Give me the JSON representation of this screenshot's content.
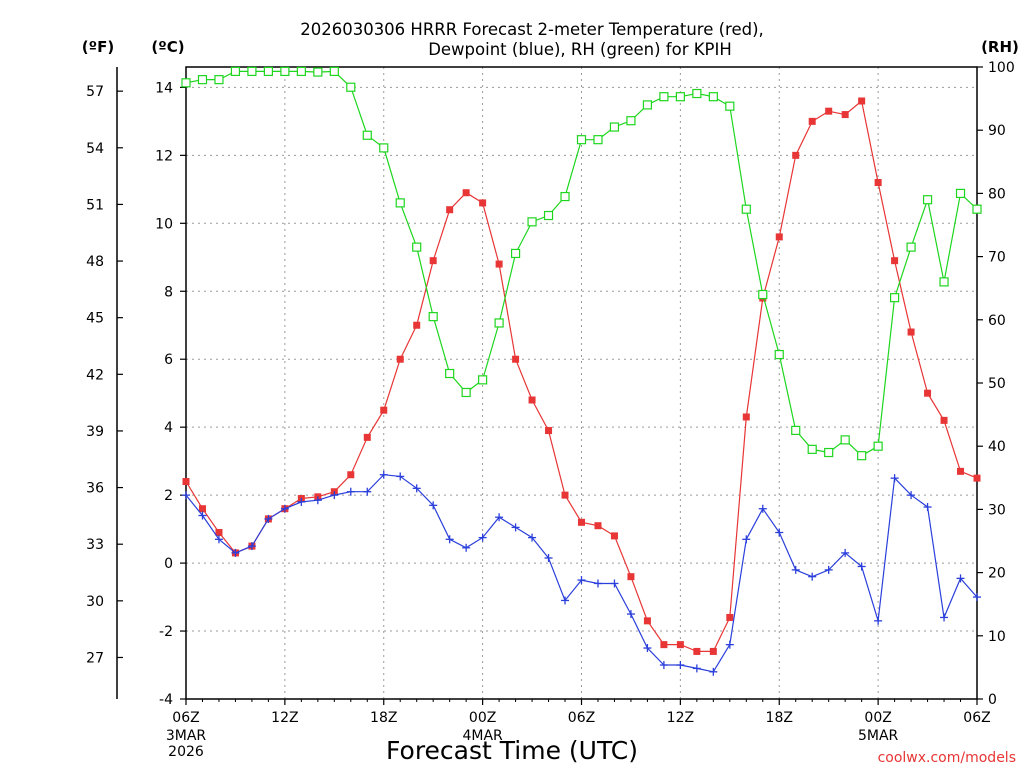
{
  "chart_data": {
    "type": "line",
    "title_line1": "2026030306 HRRR Forecast 2-meter Temperature (red),",
    "title_line2": "Dewpoint (blue), RH (green) for KPIH",
    "xlabel": "Forecast Time (UTC)",
    "left_outer_axis_label": "(ºF)",
    "left_inner_axis_label": "(ºC)",
    "right_axis_label": "(RH)",
    "watermark": "coolwx.com/models",
    "xlim": [
      0,
      48
    ],
    "ylim_c": [
      -4,
      14.6
    ],
    "ylim_rh": [
      0,
      100
    ],
    "x_ticks": [
      {
        "hour": 0,
        "label": "06Z",
        "sub1": "3MAR",
        "sub2": "2026"
      },
      {
        "hour": 6,
        "label": "12Z",
        "sub1": "",
        "sub2": ""
      },
      {
        "hour": 12,
        "label": "18Z",
        "sub1": "",
        "sub2": ""
      },
      {
        "hour": 18,
        "label": "00Z",
        "sub1": "4MAR",
        "sub2": ""
      },
      {
        "hour": 24,
        "label": "06Z",
        "sub1": "",
        "sub2": ""
      },
      {
        "hour": 30,
        "label": "12Z",
        "sub1": "",
        "sub2": ""
      },
      {
        "hour": 36,
        "label": "18Z",
        "sub1": "",
        "sub2": ""
      },
      {
        "hour": 42,
        "label": "00Z",
        "sub1": "5MAR",
        "sub2": ""
      },
      {
        "hour": 48,
        "label": "06Z",
        "sub1": "",
        "sub2": ""
      }
    ],
    "y_ticks_c": [
      "-4",
      "-2",
      "0",
      "2",
      "4",
      "6",
      "8",
      "10",
      "12",
      "14"
    ],
    "y_ticks_f": [
      "27",
      "30",
      "33",
      "36",
      "39",
      "42",
      "45",
      "48",
      "51",
      "54",
      "57"
    ],
    "y_ticks_rh": [
      "0",
      "10",
      "20",
      "30",
      "40",
      "50",
      "60",
      "70",
      "80",
      "90",
      "100"
    ],
    "series": [
      {
        "name": "Temperature",
        "color": "#e83535",
        "axis": "celsius",
        "marker": "filled-square",
        "values": [
          2.4,
          1.6,
          0.9,
          0.3,
          0.5,
          1.3,
          1.6,
          1.9,
          1.95,
          2.1,
          2.6,
          3.7,
          4.5,
          6.0,
          7.0,
          8.9,
          10.4,
          10.9,
          10.6,
          8.8,
          6.0,
          4.8,
          3.9,
          2.0,
          1.2,
          1.1,
          0.8,
          -0.4,
          -1.7,
          -2.4,
          -2.4,
          -2.6,
          -2.6,
          -1.6,
          4.3,
          7.8,
          9.6,
          12.0,
          13.0,
          13.3,
          13.2,
          13.6,
          11.2,
          8.9,
          6.8,
          5.0,
          4.2,
          2.7,
          2.5
        ]
      },
      {
        "name": "Dewpoint",
        "color": "#2a3fdb",
        "axis": "celsius",
        "marker": "plus",
        "values": [
          2.0,
          1.4,
          0.7,
          0.3,
          0.5,
          1.3,
          1.6,
          1.8,
          1.85,
          2.0,
          2.1,
          2.1,
          2.6,
          2.55,
          2.2,
          1.7,
          0.7,
          0.45,
          0.75,
          1.35,
          1.05,
          0.75,
          0.15,
          -1.1,
          -0.5,
          -0.6,
          -0.6,
          -1.5,
          -2.5,
          -3.0,
          -3.0,
          -3.1,
          -3.2,
          -2.4,
          0.7,
          1.6,
          0.9,
          -0.2,
          -0.4,
          -0.2,
          0.3,
          -0.1,
          -1.7,
          2.5,
          2.0,
          1.65,
          -1.6,
          -0.45,
          -1.0
        ]
      },
      {
        "name": "RH",
        "color": "#1ed61e",
        "axis": "rh",
        "marker": "open-square",
        "values": [
          97.5,
          98,
          98,
          99.3,
          99.3,
          99.3,
          99.3,
          99.3,
          99.2,
          99.3,
          96.8,
          89.2,
          87.2,
          78.5,
          71.5,
          60.5,
          51.5,
          48.5,
          50.5,
          59.5,
          70.5,
          75.5,
          76.5,
          79.5,
          88.5,
          88.5,
          90.5,
          91.5,
          94.0,
          95.3,
          95.3,
          95.8,
          95.3,
          93.8,
          77.5,
          64.0,
          54.5,
          42.5,
          39.5,
          39.0,
          41.0,
          38.5,
          40.0,
          63.5,
          71.5,
          79.0,
          66.0,
          80.0,
          77.5
        ]
      }
    ]
  }
}
